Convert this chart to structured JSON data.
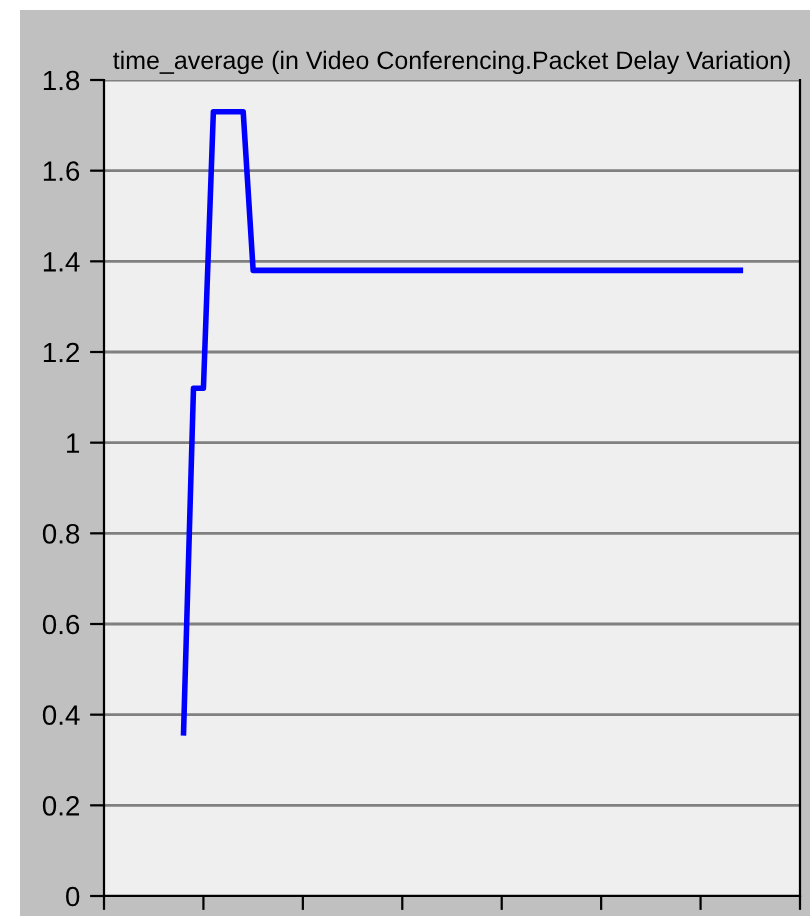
{
  "chart_data": {
    "type": "line",
    "title": "time_average (in Video Conferencing.Packet Delay Variation)",
    "categories": [
      null,
      null,
      null,
      null,
      null,
      null,
      null,
      null,
      null,
      null,
      null,
      null,
      null,
      null,
      null,
      null,
      null,
      null,
      null,
      null,
      null,
      null,
      null,
      null,
      null,
      null,
      null,
      null,
      null,
      null,
      null,
      null,
      null,
      null,
      null,
      null,
      null,
      null,
      null,
      null,
      null,
      null,
      null,
      null,
      null,
      null,
      null,
      null,
      null,
      null,
      null,
      null,
      null,
      null,
      null,
      null,
      null,
      null,
      null,
      null,
      null,
      null,
      null,
      null,
      null,
      null,
      null,
      null,
      null,
      null,
      null
    ],
    "series": [
      {
        "color": "#0000ff",
        "values": [
          null,
          null,
          null,
          null,
          null,
          null,
          null,
          null,
          0.36,
          1.12,
          1.12,
          1.73,
          1.73,
          1.73,
          1.73,
          1.38,
          1.38,
          1.38,
          1.38,
          1.38,
          1.38,
          1.38,
          1.38,
          1.38,
          1.38,
          1.38,
          1.38,
          1.38,
          1.38,
          1.38,
          1.38,
          1.38,
          1.38,
          1.38,
          1.38,
          1.38,
          1.38,
          1.38,
          1.38,
          1.38,
          1.38,
          1.38,
          1.38,
          1.38,
          1.38,
          1.38,
          1.38,
          1.38,
          1.38,
          1.38,
          1.38,
          1.38,
          1.38,
          1.38,
          1.38,
          1.38,
          1.38,
          1.38,
          1.38,
          1.38,
          1.38,
          1.38,
          1.38,
          1.38,
          1.38,
          null,
          null,
          null,
          null,
          null,
          null
        ]
      }
    ],
    "ylim": [
      0,
      1.8
    ],
    "yticks": [
      0,
      0.2,
      0.4,
      0.6,
      0.8,
      1,
      1.2,
      1.4,
      1.6,
      1.8
    ],
    "grid": "y",
    "tick_labels": "y",
    "marker": "none",
    "line_style": "solid"
  }
}
